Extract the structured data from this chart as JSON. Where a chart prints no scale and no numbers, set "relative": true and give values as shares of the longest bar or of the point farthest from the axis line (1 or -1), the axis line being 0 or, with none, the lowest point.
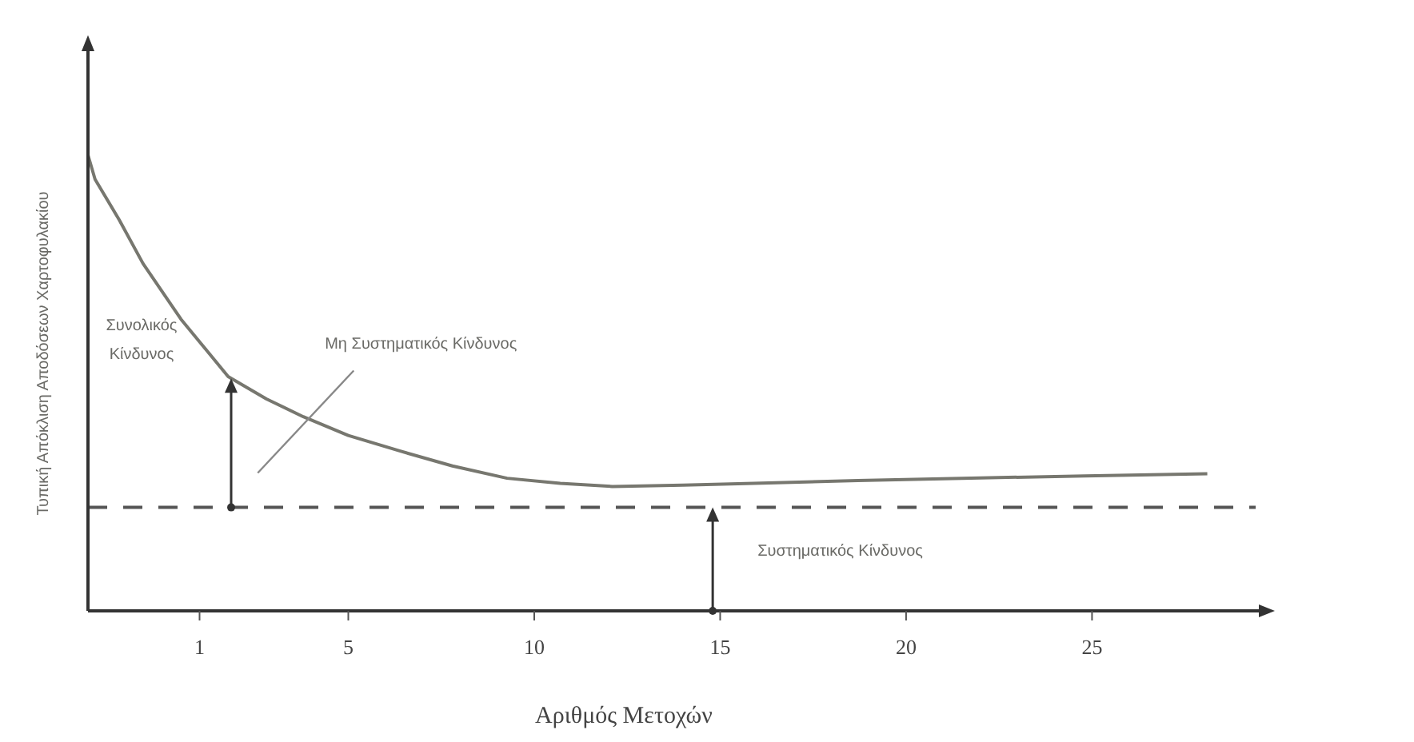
{
  "chart_data": {
    "type": "line",
    "relative": true,
    "xlabel": "Αριθμός Μετοχών",
    "ylabel": "Τυπική Απόκλιση Αποδόσεων Χαρτοφυλακίου",
    "xlim": [
      -2,
      29.4
    ],
    "xticks": [
      1,
      5,
      10,
      15,
      20,
      25
    ],
    "line_style": "solid",
    "series": [
      {
        "color": "#77776f",
        "x": [
          -2,
          -1.81,
          -1.16,
          -0.52,
          0.5,
          1.77,
          2.8,
          3.79,
          5,
          6.38,
          7.8,
          9.27,
          10.7,
          12.1,
          14,
          15.9,
          18.7,
          21.5,
          24.8,
          28.1
        ],
        "values": [
          1.0,
          0.947,
          0.858,
          0.762,
          0.64,
          0.514,
          0.465,
          0.426,
          0.385,
          0.351,
          0.318,
          0.291,
          0.28,
          0.273,
          0.276,
          0.28,
          0.286,
          0.291,
          0.296,
          0.301
        ]
      }
    ],
    "ref_lines": [
      {
        "axis": "y",
        "value": 0.227,
        "line_style": "dashed",
        "color": "#555555"
      }
    ],
    "annotations": [
      "Συνολικός Κίνδυνος",
      "Μη Συστηματικός Κίνδυνος",
      "Συστηματικός Κίνδυνος"
    ]
  }
}
